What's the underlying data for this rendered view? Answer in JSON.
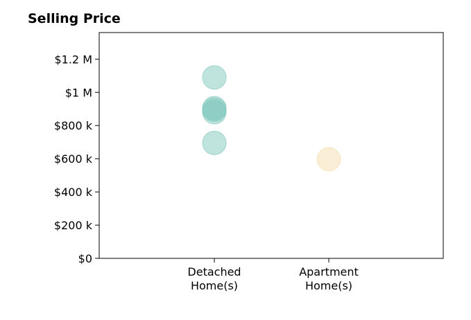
{
  "chart_data": {
    "type": "scatter",
    "title": "Selling Price",
    "categories": [
      "Detached\nHome(s)",
      "Apartment\nHome(s)"
    ],
    "ylim": [
      0,
      1360000
    ],
    "yticks": [
      {
        "value": 0,
        "label": "$0"
      },
      {
        "value": 200000,
        "label": "$200 k"
      },
      {
        "value": 400000,
        "label": "$400 k"
      },
      {
        "value": 600000,
        "label": "$600 k"
      },
      {
        "value": 800000,
        "label": "$800 k"
      },
      {
        "value": 1000000,
        "label": "$1 M"
      },
      {
        "value": 1200000,
        "label": "$1.2 M"
      }
    ],
    "series": [
      {
        "category": "Detached\nHome(s)",
        "color": "#7fc7bc",
        "values": [
          1090000,
          905000,
          895000,
          880000,
          695000
        ]
      },
      {
        "category": "Apartment\nHome(s)",
        "color": "#f5dfae",
        "values": [
          597000
        ]
      }
    ],
    "grid": false,
    "legend": "none"
  }
}
